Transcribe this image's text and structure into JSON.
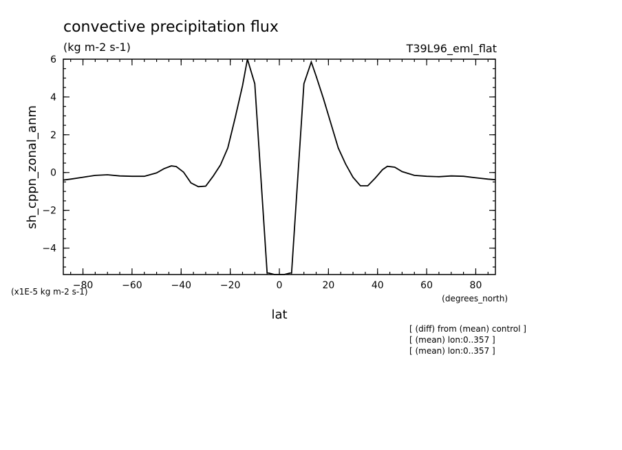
{
  "chart_data": {
    "type": "line",
    "title": "convective precipitation flux",
    "subtitle": "(kg m-2 s-1)",
    "run_label": "T39L96_eml_flat",
    "xlabel": "lat",
    "x_units": "(degrees_north)",
    "ylabel": "sh_cppn_zonal_anm",
    "y_scale_note": "(x1E-5 kg m-2 s-1)",
    "xlim": [
      -88,
      88
    ],
    "ylim": [
      -5.4,
      6
    ],
    "xticks": [
      -80,
      -60,
      -40,
      -20,
      0,
      20,
      40,
      60,
      80
    ],
    "yticks": [
      -4,
      -2,
      0,
      2,
      4,
      6
    ],
    "grid": false,
    "series": [
      {
        "x": [
          -88,
          -85,
          -80,
          -75,
          -70,
          -65,
          -60,
          -55,
          -50,
          -47,
          -44,
          -42,
          -39,
          -36,
          -33,
          -30,
          -27,
          -24,
          -21,
          -18,
          -15,
          -13,
          -10,
          -5,
          -2,
          0,
          2,
          5,
          10,
          13,
          15,
          18,
          21,
          24,
          27,
          30,
          33,
          36,
          39,
          42,
          44,
          47,
          50,
          55,
          60,
          65,
          70,
          75,
          80,
          85,
          88
        ],
        "y": [
          -0.4,
          -0.35,
          -0.25,
          -0.15,
          -0.12,
          -0.18,
          -0.2,
          -0.2,
          -0.02,
          0.2,
          0.35,
          0.32,
          0.02,
          -0.55,
          -0.75,
          -0.72,
          -0.2,
          0.4,
          1.3,
          2.9,
          4.6,
          6.0,
          4.7,
          -5.3,
          -5.4,
          -5.4,
          -5.4,
          -5.3,
          4.7,
          5.85,
          5.1,
          3.9,
          2.6,
          1.3,
          0.45,
          -0.25,
          -0.7,
          -0.7,
          -0.3,
          0.15,
          0.33,
          0.28,
          0.05,
          -0.15,
          -0.2,
          -0.22,
          -0.18,
          -0.2,
          -0.28,
          -0.35,
          -0.38
        ]
      }
    ]
  },
  "annotations": [
    "[ (diff) from (mean) control ]",
    "[ (mean) lon:0..357 ]",
    "[ (mean) lon:0..357 ]"
  ]
}
